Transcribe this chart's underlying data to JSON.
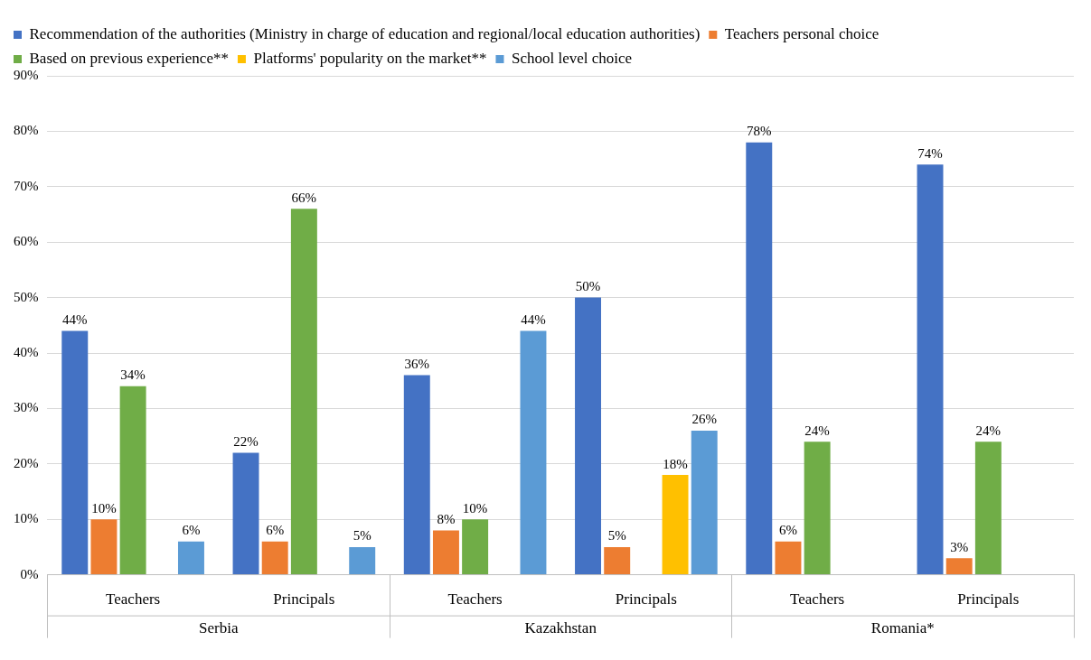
{
  "chart_data": {
    "type": "bar",
    "categories": [
      "Teachers",
      "Principals",
      "Teachers",
      "Principals",
      "Teachers",
      "Principals"
    ],
    "series": [
      {
        "name": "Recommendation of the authorities (Ministry in charge of education and regional/local education authorities)",
        "color": "#4472c4",
        "values": [
          44,
          22,
          36,
          50,
          78,
          74
        ],
        "value_labels": [
          "44%",
          "22%",
          "36%",
          "50%",
          "78%",
          "74%"
        ]
      },
      {
        "name": "Teachers personal choice",
        "color": "#ed7d31",
        "values": [
          10,
          6,
          8,
          5,
          6,
          3
        ],
        "value_labels": [
          "10%",
          "6%",
          "8%",
          "5%",
          "6%",
          "3%"
        ]
      },
      {
        "name": "Based on previous experience**",
        "color": "#70ad47",
        "values": [
          34,
          66,
          10,
          null,
          24,
          24
        ],
        "value_labels": [
          "34%",
          "66%",
          "10%",
          null,
          "24%",
          "24%"
        ]
      },
      {
        "name": "Platforms' popularity on the market**",
        "color": "#ffc000",
        "values": [
          null,
          null,
          null,
          18,
          null,
          null
        ],
        "value_labels": [
          null,
          null,
          null,
          "18%",
          null,
          null
        ]
      },
      {
        "name": "School level choice",
        "color": "#5b9bd5",
        "values": [
          6,
          5,
          44,
          26,
          null,
          null
        ],
        "value_labels": [
          "6%",
          "5%",
          "44%",
          "26%",
          null,
          null
        ]
      }
    ],
    "ylim": [
      0,
      90
    ],
    "yticks": [
      {
        "value": 0,
        "label": "0%"
      },
      {
        "value": 10,
        "label": "10%"
      },
      {
        "value": 20,
        "label": "20%"
      },
      {
        "value": 30,
        "label": "30%"
      },
      {
        "value": 40,
        "label": "40%"
      },
      {
        "value": 50,
        "label": "50%"
      },
      {
        "value": 60,
        "label": "60%"
      },
      {
        "value": 70,
        "label": "70%"
      },
      {
        "value": 80,
        "label": "80%"
      },
      {
        "value": 90,
        "label": "90%"
      }
    ],
    "grid": "y",
    "legend": "top left",
    "annotations": [
      "Serbia",
      "Kazakhstan",
      "Romania*"
    ]
  }
}
